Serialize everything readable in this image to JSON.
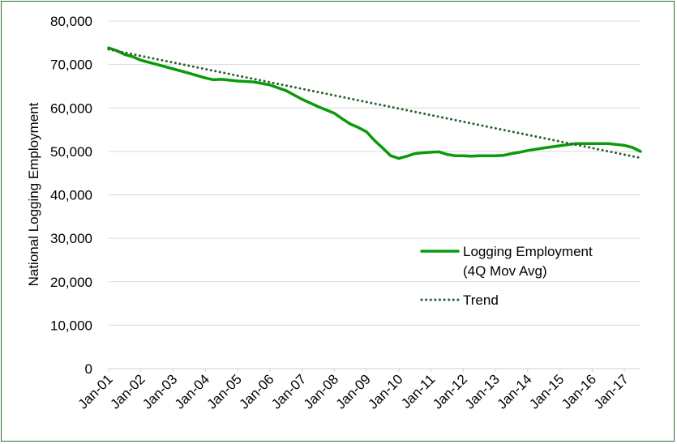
{
  "chart_data": {
    "type": "line",
    "title": "",
    "xlabel": "",
    "ylabel": "National Logging Employment",
    "ylim": [
      0,
      80000
    ],
    "yticks": [
      0,
      10000,
      20000,
      30000,
      40000,
      50000,
      60000,
      70000,
      80000
    ],
    "ytick_labels": [
      "0",
      "10,000",
      "20,000",
      "30,000",
      "40,000",
      "50,000",
      "60,000",
      "70,000",
      "80,000"
    ],
    "xlim": [
      2001.0,
      2017.5
    ],
    "xtick_labels": [
      "Jan-01",
      "Jan-02",
      "Jan-03",
      "Jan-04",
      "Jan-05",
      "Jan-06",
      "Jan-07",
      "Jan-08",
      "Jan-09",
      "Jan-10",
      "Jan-11",
      "Jan-12",
      "Jan-13",
      "Jan-14",
      "Jan-15",
      "Jan-16",
      "Jan-17"
    ],
    "grid": true,
    "legend_position": "right",
    "series": [
      {
        "name": "Logging Employment (4Q Mov Avg)",
        "legend_lines": [
          "Logging Employment",
          "(4Q Mov Avg)"
        ],
        "color": "#0a9a0a",
        "style": "solid",
        "x": [
          2001.0,
          2001.25,
          2001.5,
          2001.75,
          2002.0,
          2002.5,
          2003.0,
          2003.5,
          2004.0,
          2004.25,
          2004.5,
          2005.0,
          2005.5,
          2006.0,
          2006.5,
          2007.0,
          2007.5,
          2008.0,
          2008.25,
          2008.5,
          2008.75,
          2009.0,
          2009.25,
          2009.5,
          2009.75,
          2010.0,
          2010.25,
          2010.5,
          2010.75,
          2011.0,
          2011.25,
          2011.5,
          2011.75,
          2012.0,
          2012.25,
          2012.5,
          2012.75,
          2013.0,
          2013.25,
          2013.5,
          2013.75,
          2014.0,
          2014.5,
          2015.0,
          2015.5,
          2016.0,
          2016.5,
          2017.0,
          2017.25,
          2017.5
        ],
        "values": [
          73800,
          73200,
          72300,
          71800,
          71000,
          70000,
          69000,
          68000,
          66900,
          66500,
          66600,
          66200,
          66000,
          65300,
          64000,
          62000,
          60300,
          58800,
          57500,
          56300,
          55500,
          54500,
          52500,
          50800,
          49000,
          48400,
          48900,
          49500,
          49700,
          49800,
          49900,
          49300,
          49000,
          49000,
          48900,
          49000,
          49000,
          49000,
          49100,
          49500,
          49800,
          50200,
          50800,
          51300,
          51800,
          51800,
          51800,
          51400,
          50900,
          50000
        ]
      },
      {
        "name": "Trend",
        "legend_lines": [
          "Trend"
        ],
        "color": "#2e5e2e",
        "style": "dotted",
        "x": [
          2001.0,
          2017.5
        ],
        "values": [
          73500,
          48500
        ]
      }
    ]
  }
}
